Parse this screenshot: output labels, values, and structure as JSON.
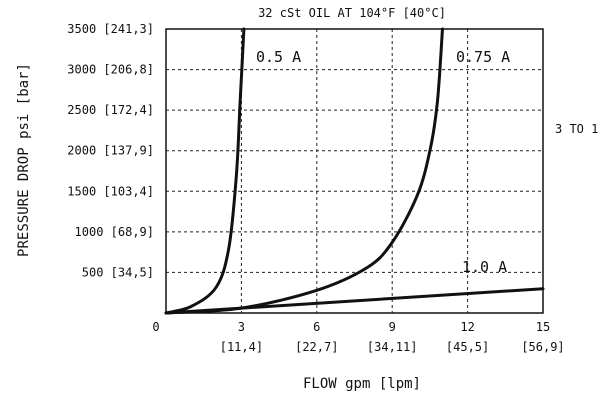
{
  "chart_data": {
    "type": "line",
    "title": "32 cSt OIL AT 104°F [40°C]",
    "side_note": "3 TO 1",
    "xlabel": "FLOW gpm [lpm]",
    "ylabel": "PRESSURE DROP psi [bar]",
    "xlim": [
      0,
      15
    ],
    "ylim": [
      0,
      3500
    ],
    "grid": true,
    "x_ticks": [
      {
        "value": 0,
        "label": "0",
        "sub": ""
      },
      {
        "value": 3,
        "label": "3",
        "sub": "[11,4]"
      },
      {
        "value": 6,
        "label": "6",
        "sub": "[22,7]"
      },
      {
        "value": 9,
        "label": "9",
        "sub": "[34,11]"
      },
      {
        "value": 12,
        "label": "12",
        "sub": "[45,5]"
      },
      {
        "value": 15,
        "label": "15",
        "sub": "[56,9]"
      }
    ],
    "y_ticks": [
      {
        "value": 500,
        "label": "500 [34,5]"
      },
      {
        "value": 1000,
        "label": "1000 [68,9]"
      },
      {
        "value": 1500,
        "label": "1500 [103,4]"
      },
      {
        "value": 2000,
        "label": "2000 [137,9]"
      },
      {
        "value": 2500,
        "label": "2500 [172,4]"
      },
      {
        "value": 3000,
        "label": "3000 [206,8]"
      },
      {
        "value": 3500,
        "label": "3500 [241,3]"
      }
    ],
    "series": [
      {
        "name": "0.5 A",
        "x": [
          0,
          1.0,
          2.0,
          2.5,
          2.8,
          2.95,
          3.1
        ],
        "y": [
          0,
          80,
          320,
          800,
          1700,
          2600,
          3500
        ]
      },
      {
        "name": "0.75 A",
        "x": [
          0,
          3,
          6,
          8,
          9,
          10,
          10.5,
          10.8,
          11.0
        ],
        "y": [
          0,
          60,
          280,
          560,
          870,
          1450,
          2000,
          2600,
          3500
        ]
      },
      {
        "name": "1.0 A",
        "x": [
          0,
          15
        ],
        "y": [
          0,
          300
        ]
      }
    ]
  }
}
